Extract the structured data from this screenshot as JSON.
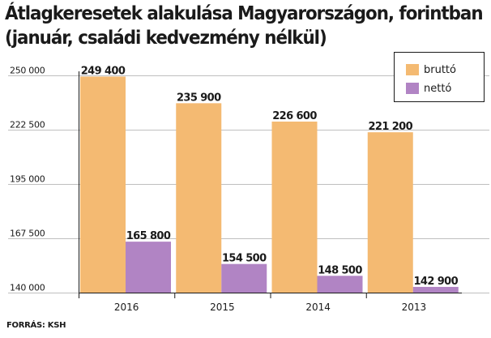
{
  "title_lines": [
    "Átlagkeresetek alakulása Magyarországon, forintban",
    "(január, családi kedvezmény nélkül)"
  ],
  "source": "FORRÁS: KSH",
  "colors": {
    "brutto": "#F4BA72",
    "netto": "#B184C4",
    "grid": "#bfbfbf",
    "axis": "#1a1a1a"
  },
  "chart_data": {
    "type": "bar",
    "categories": [
      "2016",
      "2015",
      "2014",
      "2013"
    ],
    "series": [
      {
        "name": "bruttó",
        "values": [
          249400,
          235900,
          226600,
          221200
        ]
      },
      {
        "name": "nettó",
        "values": [
          165800,
          154500,
          148500,
          142900
        ]
      }
    ],
    "value_labels": [
      [
        "249 400",
        "235 900",
        "226 600",
        "221 200"
      ],
      [
        "165 800",
        "154 500",
        "148 500",
        "142 900"
      ]
    ],
    "yticks": [
      140000,
      167500,
      195000,
      222500,
      250000
    ],
    "ytick_labels": [
      "140 000",
      "167 500",
      "195 000",
      "222 500",
      "250 000"
    ],
    "ylim": [
      140000,
      250000
    ],
    "grid": true,
    "legend_position": "top-right"
  }
}
